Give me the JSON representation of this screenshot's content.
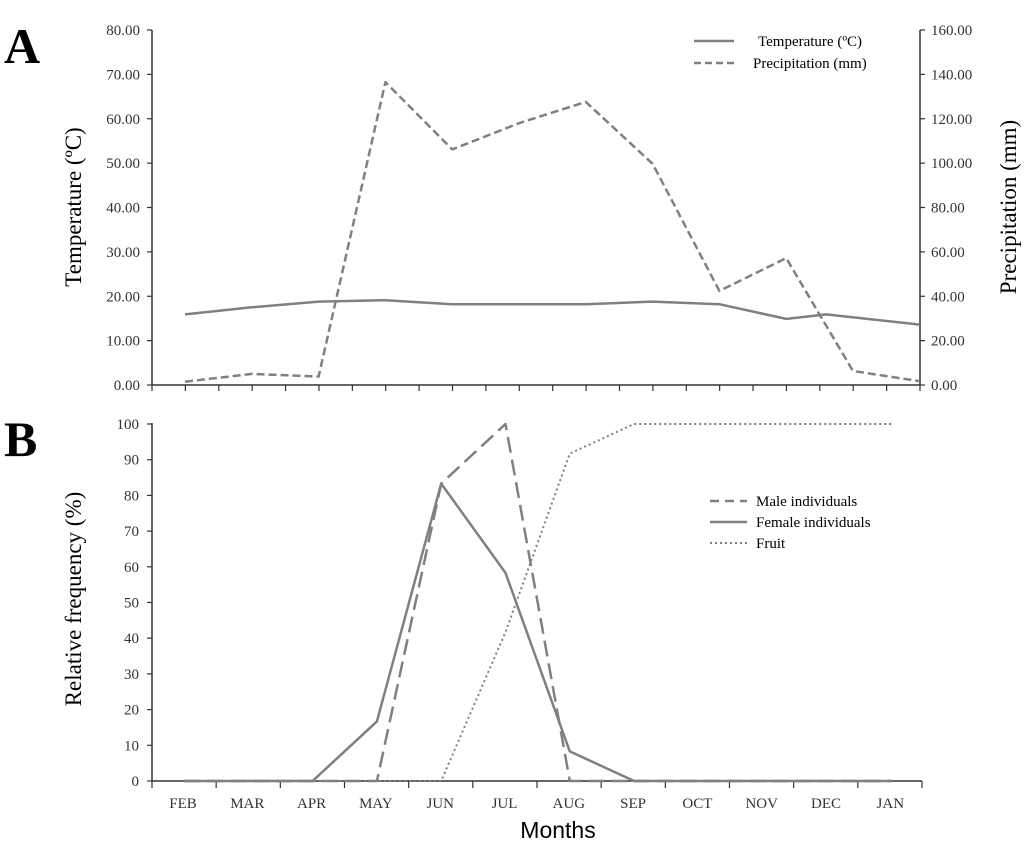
{
  "colors": {
    "series": "#808080",
    "axis": "#333333"
  },
  "chart_data": [
    {
      "panel": "A",
      "type": "line",
      "categories": [
        "FEB",
        "MAR",
        "APR",
        "MAY",
        "JUN",
        "JUL",
        "AUG",
        "SEP",
        "OCT",
        "NOV",
        "DEC",
        "JAN"
      ],
      "ylabel": "Temperature (ºC)",
      "y2label": "Precipitation (mm)",
      "ylim": [
        0,
        80
      ],
      "y2lim": [
        0,
        160
      ],
      "yticks": [
        "0.00",
        "10.00",
        "20.00",
        "30.00",
        "40.00",
        "50.00",
        "60.00",
        "70.00",
        "80.00"
      ],
      "y2ticks": [
        "0.00",
        "20.00",
        "40.00",
        "60.00",
        "80.00",
        "100.00",
        "120.00",
        "140.00",
        "160.00"
      ],
      "series": [
        {
          "name": "Temperature (ºC)",
          "axis": "left",
          "style": "solid",
          "x": [
            0,
            1,
            2,
            3,
            4,
            5,
            6,
            7,
            8,
            9,
            9.6,
            11
          ],
          "values": [
            15.9,
            17.5,
            18.8,
            19.1,
            18.2,
            18.2,
            18.2,
            18.8,
            18.2,
            14.9,
            15.9,
            13.6
          ]
        },
        {
          "name": "Precipitation (mm)",
          "axis": "right",
          "style": "dashed",
          "x": [
            0,
            1,
            2,
            3,
            4,
            5,
            6,
            7,
            8,
            9,
            10,
            11
          ],
          "values": [
            1.5,
            5.0,
            3.8,
            136.5,
            106.2,
            118.0,
            127.6,
            99.7,
            42.4,
            57.2,
            6.3,
            1.7
          ]
        }
      ]
    },
    {
      "panel": "B",
      "type": "line",
      "categories": [
        "FEB",
        "MAR",
        "APR",
        "MAY",
        "JUN",
        "JUL",
        "AUG",
        "SEP",
        "OCT",
        "NOV",
        "DEC",
        "JAN"
      ],
      "xlabel": "Months",
      "ylabel": "Relative frequency (%)",
      "ylim": [
        0,
        100
      ],
      "yticks": [
        "0",
        "10",
        "20",
        "30",
        "40",
        "50",
        "60",
        "70",
        "80",
        "90",
        "100"
      ],
      "series": [
        {
          "name": "Male individuals",
          "style": "dashed",
          "x": [
            0,
            1,
            2,
            3,
            4,
            5,
            6,
            7,
            8,
            9,
            10,
            11
          ],
          "values": [
            0,
            0,
            0,
            0,
            83.3,
            100,
            0,
            0,
            0,
            0,
            0,
            0
          ]
        },
        {
          "name": "Female individuals",
          "style": "solid",
          "x": [
            0,
            1,
            2,
            3,
            4,
            5,
            6,
            7,
            8,
            9,
            10,
            11
          ],
          "values": [
            0,
            0,
            0,
            16.7,
            83.3,
            58.3,
            8.3,
            0,
            0,
            0,
            0,
            0
          ]
        },
        {
          "name": "Fruit",
          "style": "dotted",
          "x": [
            0,
            1,
            2,
            3,
            4,
            5,
            6,
            7,
            8,
            9,
            10,
            11
          ],
          "values": [
            0,
            0,
            0,
            0,
            0,
            41.7,
            91.7,
            100,
            100,
            100,
            100,
            100
          ]
        }
      ]
    }
  ]
}
